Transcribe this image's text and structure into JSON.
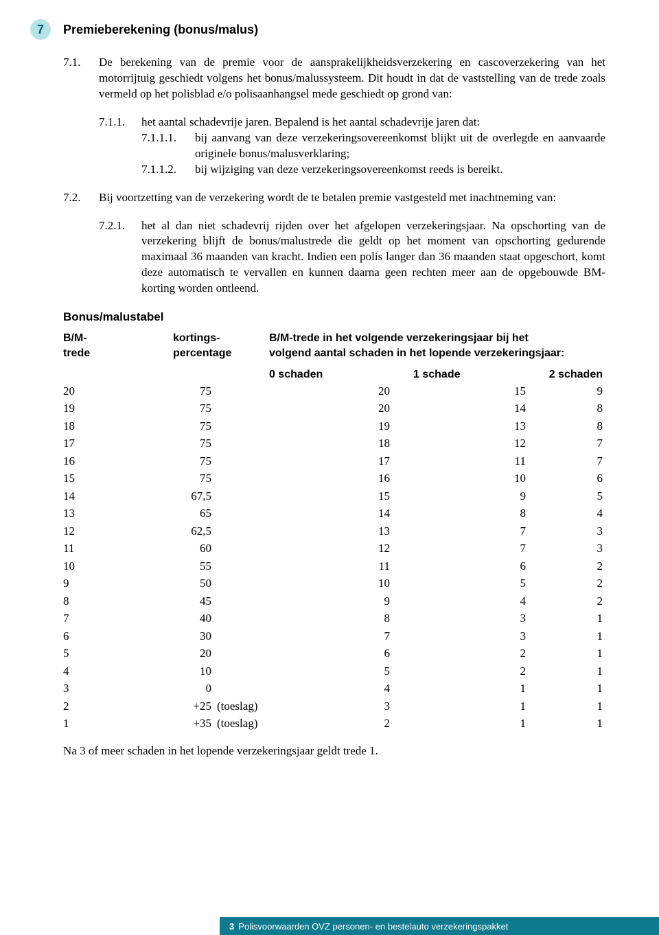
{
  "colors": {
    "badge_bg": "#b6e3e8",
    "badge_text": "#0b5a7a",
    "footer_bg": "#0e7a8e",
    "footer_text": "#ffffff",
    "body_text": "#000000",
    "page_bg": "#ffffff"
  },
  "section": {
    "number": "7",
    "title": "Premieberekening (bonus/malus)"
  },
  "p71": {
    "num": "7.1.",
    "text": "De berekening van de premie voor de aansprakelijkheidsverzekering en cascoverzekering van het motorrijtuig geschiedt volgens het bonus/malussysteem. Dit houdt in dat de vaststelling van de trede zoals vermeld op het polisblad e/o polisaanhangsel mede geschiedt op grond van:"
  },
  "p711": {
    "num": "7.1.1.",
    "text": "het aantal schadevrije jaren. Bepalend is het aantal schadevrije jaren dat:"
  },
  "p7111": {
    "num": "7.1.1.1.",
    "text": "bij aanvang van deze verzekeringsovereenkomst blijkt uit de overlegde en aanvaarde originele bonus/malusverklaring;"
  },
  "p7112": {
    "num": "7.1.1.2.",
    "text": "bij wijziging van deze verzekeringsovereenkomst reeds is bereikt."
  },
  "p72": {
    "num": "7.2.",
    "text": "Bij voortzetting van de verzekering wordt de te betalen premie vastgesteld met inachtneming van:"
  },
  "p721": {
    "num": "7.2.1.",
    "text": "het al dan niet schadevrij rijden over het afgelopen verzekeringsjaar. Na opschorting van de verzekering blijft de bonus/malustrede die geldt op het moment van opschorting gedurende maximaal 36 maanden van kracht. Indien een polis langer dan 36 maanden staat opgeschort, komt deze automatisch te vervallen en kunnen daarna geen rechten meer aan de opgebouwde BM-korting worden ontleend."
  },
  "table": {
    "title": "Bonus/malustabel",
    "header": {
      "bm_l1": "B/M-",
      "bm_l2": "trede",
      "kp_l1": "kortings-",
      "kp_l2": "percentage",
      "desc_l1": "B/M-trede in het volgende verzekeringsjaar bij het",
      "desc_l2": "volgend aantal schaden in het lopende verzekeringsjaar:",
      "s0": "0 schaden",
      "s1": "1 schade",
      "s2": "2 schaden"
    },
    "rows": [
      {
        "bm": "20",
        "kp": "75",
        "suf": "",
        "s0": "20",
        "s1": "15",
        "s2": "9"
      },
      {
        "bm": "19",
        "kp": "75",
        "suf": "",
        "s0": "20",
        "s1": "14",
        "s2": "8"
      },
      {
        "bm": "18",
        "kp": "75",
        "suf": "",
        "s0": "19",
        "s1": "13",
        "s2": "8"
      },
      {
        "bm": "17",
        "kp": "75",
        "suf": "",
        "s0": "18",
        "s1": "12",
        "s2": "7"
      },
      {
        "bm": "16",
        "kp": "75",
        "suf": "",
        "s0": "17",
        "s1": "11",
        "s2": "7"
      },
      {
        "bm": "15",
        "kp": "75",
        "suf": "",
        "s0": "16",
        "s1": "10",
        "s2": "6"
      },
      {
        "bm": "14",
        "kp": "67,5",
        "suf": "",
        "s0": "15",
        "s1": "9",
        "s2": "5"
      },
      {
        "bm": "13",
        "kp": "65",
        "suf": "",
        "s0": "14",
        "s1": "8",
        "s2": "4"
      },
      {
        "bm": "12",
        "kp": "62,5",
        "suf": "",
        "s0": "13",
        "s1": "7",
        "s2": "3"
      },
      {
        "bm": "11",
        "kp": "60",
        "suf": "",
        "s0": "12",
        "s1": "7",
        "s2": "3"
      },
      {
        "bm": "10",
        "kp": "55",
        "suf": "",
        "s0": "11",
        "s1": "6",
        "s2": "2"
      },
      {
        "bm": "9",
        "kp": "50",
        "suf": "",
        "s0": "10",
        "s1": "5",
        "s2": "2"
      },
      {
        "bm": "8",
        "kp": "45",
        "suf": "",
        "s0": "9",
        "s1": "4",
        "s2": "2"
      },
      {
        "bm": "7",
        "kp": "40",
        "suf": "",
        "s0": "8",
        "s1": "3",
        "s2": "1"
      },
      {
        "bm": "6",
        "kp": "30",
        "suf": "",
        "s0": "7",
        "s1": "3",
        "s2": "1"
      },
      {
        "bm": "5",
        "kp": "20",
        "suf": "",
        "s0": "6",
        "s1": "2",
        "s2": "1"
      },
      {
        "bm": "4",
        "kp": "10",
        "suf": "",
        "s0": "5",
        "s1": "2",
        "s2": "1"
      },
      {
        "bm": "3",
        "kp": "0",
        "suf": "",
        "s0": "4",
        "s1": "1",
        "s2": "1"
      },
      {
        "bm": "2",
        "kp": "+25",
        "suf": "(toeslag)",
        "s0": "3",
        "s1": "1",
        "s2": "1"
      },
      {
        "bm": "1",
        "kp": "+35",
        "suf": "(toeslag)",
        "s0": "2",
        "s1": "1",
        "s2": "1"
      }
    ]
  },
  "note": "Na 3 of meer schaden in het lopende verzekeringsjaar geldt trede 1.",
  "footer": {
    "page": "3",
    "text": "Polisvoorwaarden OVZ personen- en bestelauto verzekeringspakket"
  }
}
